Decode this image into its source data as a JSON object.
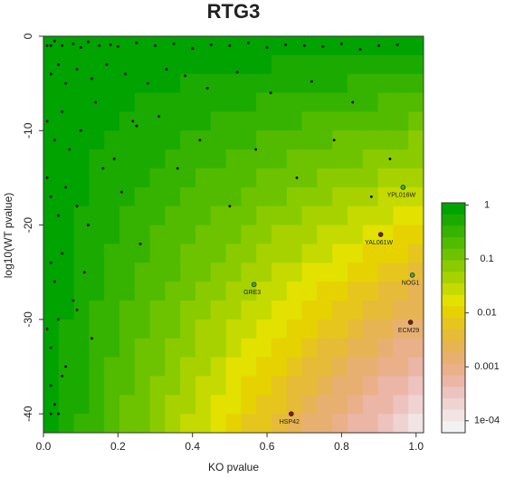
{
  "chart_data": {
    "type": "scatter",
    "title": "RTG3",
    "x_label": "KO pvalue",
    "y_label": "log10(WT pvalue)",
    "xlim": [
      0,
      1.02
    ],
    "ylim": [
      -42,
      0
    ],
    "xticks": [
      {
        "value": 0,
        "label": "0.0"
      },
      {
        "value": 0.2,
        "label": "0.2"
      },
      {
        "value": 0.4,
        "label": "0.4"
      },
      {
        "value": 0.6,
        "label": "0.6"
      },
      {
        "value": 0.8,
        "label": "0.8"
      },
      {
        "value": 1,
        "label": "1.0"
      }
    ],
    "yticks": [
      0,
      -10,
      -20,
      -30,
      -40
    ],
    "point_color": "#000000",
    "x": [
      0.01,
      0.02,
      0.03,
      0.05,
      0.08,
      0.1,
      0.12,
      0.15,
      0.18,
      0.2,
      0.25,
      0.3,
      0.35,
      0.4,
      0.45,
      0.5,
      0.55,
      0.6,
      0.65,
      0.7,
      0.75,
      0.8,
      0.85,
      0.9,
      0.95,
      0.02,
      0.04,
      0.06,
      0.09,
      0.13,
      0.17,
      0.22,
      0.28,
      0.33,
      0.38,
      0.44,
      0.52,
      0.61,
      0.72,
      0.83,
      0.01,
      0.03,
      0.05,
      0.07,
      0.1,
      0.14,
      0.19,
      0.24,
      0.31,
      0.42,
      0.01,
      0.02,
      0.04,
      0.06,
      0.09,
      0.12,
      0.16,
      0.21,
      0.26,
      0.02,
      0.03,
      0.05,
      0.08,
      0.11,
      0.01,
      0.02,
      0.04,
      0.06,
      0.09,
      0.13,
      0.02,
      0.03,
      0.05,
      0.02,
      0.04,
      0.25,
      0.36,
      0.5,
      0.57,
      0.68,
      0.78,
      0.88,
      0.93
    ],
    "y": [
      -1,
      -1,
      -0.5,
      -1,
      -0.8,
      -1.2,
      -0.6,
      -1,
      -0.9,
      -1.1,
      -0.7,
      -1,
      -0.8,
      -1.3,
      -0.9,
      -1,
      -0.7,
      -1.2,
      -0.9,
      -1,
      -1.1,
      -0.8,
      -1.4,
      -1,
      -0.9,
      -4,
      -3,
      -5,
      -3.5,
      -4.5,
      -3,
      -4,
      -5,
      -3.5,
      -4.2,
      -5.5,
      -3.8,
      -6,
      -4.8,
      -7,
      -9,
      -11,
      -8,
      -12,
      -10,
      -7,
      -13,
      -9,
      -8.5,
      -11,
      -15,
      -17,
      -19,
      -16,
      -18,
      -20,
      -14,
      -16.5,
      -22,
      -24,
      -26,
      -23,
      -28,
      -25,
      -31,
      -33,
      -30,
      -35,
      -29,
      -32,
      -37,
      -39,
      -36,
      -40,
      -40,
      -9.5,
      -14,
      -18,
      -12,
      -15,
      -11,
      -17,
      -13
    ],
    "annotations": [
      {
        "label": "YPL016W",
        "x": 0.965,
        "y": -16,
        "color": "#3aa63a"
      },
      {
        "label": "YAL061W",
        "x": 0.905,
        "y": -21,
        "color": "#7a1a1a"
      },
      {
        "label": "NOG1",
        "x": 0.99,
        "y": -25.3,
        "color": "#3aa63a"
      },
      {
        "label": "GRE3",
        "x": 0.565,
        "y": -26.3,
        "color": "#3aa63a"
      },
      {
        "label": "ECM29",
        "x": 0.985,
        "y": -30.3,
        "color": "#7a1a1a"
      },
      {
        "label": "HSP42",
        "x": 0.665,
        "y": -40,
        "color": "#7a1a1a"
      }
    ],
    "color_lim": [
      6e-05,
      1.1
    ],
    "color_log": true,
    "color_ticks": [
      1,
      0.1,
      0.01,
      0.001,
      {
        "value": 0.0001,
        "label": "1e-04"
      }
    ],
    "color_scale": [
      "#00a300",
      "#1bab00",
      "#36b300",
      "#52bb00",
      "#6dc300",
      "#8acb00",
      "#a7d200",
      "#c4da00",
      "#e2e100",
      "#e6d200",
      "#e6c61c",
      "#e6bb38",
      "#e7b454",
      "#e8b070",
      "#e9b08a",
      "#ebb6a5",
      "#edc3bf",
      "#efd3d1",
      "#f1e4e3",
      "#f2f2f2"
    ]
  }
}
